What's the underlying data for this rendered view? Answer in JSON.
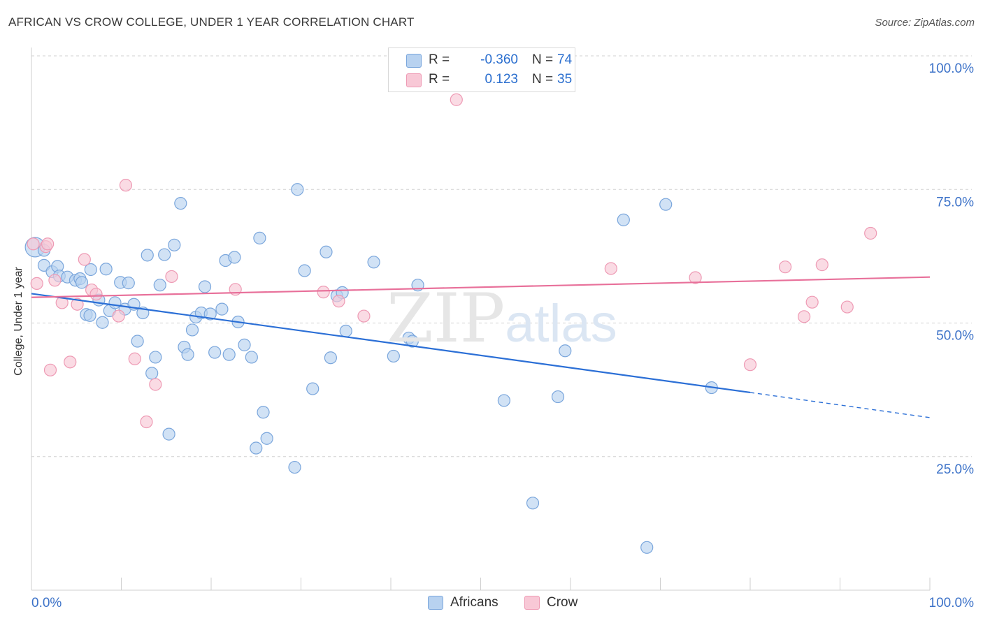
{
  "header": {
    "title": "AFRICAN VS CROW COLLEGE, UNDER 1 YEAR CORRELATION CHART",
    "source": "Source: ZipAtlas.com"
  },
  "legend": {
    "africans": {
      "r_label": "R =",
      "r_value": "-0.360",
      "n_label": "N =",
      "n_value": "74"
    },
    "crow": {
      "r_label": "R =",
      "r_value": "0.123",
      "n_label": "N =",
      "n_value": "35"
    }
  },
  "bottom_legend": {
    "africans": "Africans",
    "crow": "Crow"
  },
  "watermark": {
    "zip": "ZIP",
    "atlas": "atlas"
  },
  "colors": {
    "africans_fill": "#b8d2f0",
    "africans_stroke": "#7aa6dc",
    "africans_line": "#2b6fd6",
    "crow_fill": "#f8c8d6",
    "crow_stroke": "#ee9ab4",
    "crow_line": "#e8709a",
    "tick_text": "#3c72c8",
    "grid": "#d0d0d0"
  },
  "chart_data": {
    "type": "scatter",
    "title": "AFRICAN VS CROW COLLEGE, UNDER 1 YEAR CORRELATION CHART",
    "xlabel": "",
    "ylabel": "College, Under 1 year",
    "xlim": [
      0,
      100
    ],
    "ylim": [
      0,
      100
    ],
    "x_tick_labels": [
      "0.0%",
      "100.0%"
    ],
    "y_ticks": [
      25,
      50,
      75,
      100
    ],
    "y_tick_labels": [
      "25.0%",
      "50.0%",
      "75.0%",
      "100.0%"
    ],
    "series": [
      {
        "name": "Africans",
        "points": [
          [
            0.4,
            64.2
          ],
          [
            1.4,
            63.6
          ],
          [
            1.4,
            60.8
          ],
          [
            2.3,
            59.6
          ],
          [
            2.9,
            60.6
          ],
          [
            3.1,
            58.8
          ],
          [
            4.0,
            58.6
          ],
          [
            4.9,
            58.0
          ],
          [
            5.4,
            58.3
          ],
          [
            5.6,
            57.6
          ],
          [
            6.1,
            51.6
          ],
          [
            6.5,
            51.4
          ],
          [
            6.6,
            60.0
          ],
          [
            7.5,
            54.3
          ],
          [
            7.9,
            50.1
          ],
          [
            8.3,
            60.1
          ],
          [
            8.7,
            52.3
          ],
          [
            9.3,
            53.8
          ],
          [
            9.9,
            57.6
          ],
          [
            10.4,
            52.6
          ],
          [
            10.8,
            57.5
          ],
          [
            11.4,
            53.5
          ],
          [
            11.8,
            46.6
          ],
          [
            12.4,
            51.9
          ],
          [
            12.9,
            62.7
          ],
          [
            13.4,
            40.6
          ],
          [
            13.8,
            43.6
          ],
          [
            14.3,
            57.1
          ],
          [
            14.8,
            62.8
          ],
          [
            15.3,
            29.2
          ],
          [
            15.9,
            64.6
          ],
          [
            16.6,
            72.4
          ],
          [
            17.0,
            45.5
          ],
          [
            17.4,
            44.1
          ],
          [
            17.9,
            48.7
          ],
          [
            18.3,
            51.1
          ],
          [
            18.9,
            51.9
          ],
          [
            19.3,
            56.8
          ],
          [
            19.9,
            51.7
          ],
          [
            20.4,
            44.5
          ],
          [
            21.2,
            52.6
          ],
          [
            21.6,
            61.7
          ],
          [
            22.0,
            44.1
          ],
          [
            22.6,
            62.3
          ],
          [
            23.0,
            50.2
          ],
          [
            23.7,
            45.9
          ],
          [
            24.5,
            43.6
          ],
          [
            25.0,
            26.6
          ],
          [
            25.4,
            65.9
          ],
          [
            25.8,
            33.3
          ],
          [
            26.2,
            28.4
          ],
          [
            29.3,
            23.0
          ],
          [
            29.6,
            75.0
          ],
          [
            30.4,
            59.8
          ],
          [
            31.3,
            37.7
          ],
          [
            32.8,
            63.3
          ],
          [
            33.3,
            43.5
          ],
          [
            34.0,
            55.1
          ],
          [
            34.6,
            55.7
          ],
          [
            35.0,
            48.5
          ],
          [
            38.1,
            61.4
          ],
          [
            40.3,
            43.8
          ],
          [
            42.0,
            47.2
          ],
          [
            42.4,
            46.6
          ],
          [
            43.0,
            57.1
          ],
          [
            52.6,
            35.5
          ],
          [
            55.8,
            16.3
          ],
          [
            58.6,
            36.2
          ],
          [
            59.4,
            44.8
          ],
          [
            65.9,
            69.3
          ],
          [
            68.5,
            8.0
          ],
          [
            70.6,
            72.2
          ],
          [
            75.7,
            37.9
          ]
        ],
        "regression": {
          "x0": 0,
          "y0": 55.5,
          "x1": 80,
          "y1": 37.0,
          "dash_to_x": 100,
          "dash_to_y": 32.3
        }
      },
      {
        "name": "Crow",
        "points": [
          [
            0.2,
            64.8
          ],
          [
            0.6,
            57.4
          ],
          [
            1.6,
            64.3
          ],
          [
            1.8,
            64.8
          ],
          [
            2.1,
            41.2
          ],
          [
            2.6,
            58.0
          ],
          [
            3.4,
            53.8
          ],
          [
            4.3,
            42.7
          ],
          [
            5.1,
            53.5
          ],
          [
            5.9,
            61.9
          ],
          [
            6.7,
            56.2
          ],
          [
            7.2,
            55.4
          ],
          [
            9.7,
            51.3
          ],
          [
            10.5,
            75.8
          ],
          [
            11.5,
            43.3
          ],
          [
            12.8,
            31.5
          ],
          [
            13.8,
            38.5
          ],
          [
            15.6,
            58.7
          ],
          [
            22.7,
            56.3
          ],
          [
            32.5,
            55.8
          ],
          [
            34.2,
            54.1
          ],
          [
            37.0,
            51.3
          ],
          [
            47.3,
            91.8
          ],
          [
            64.5,
            60.2
          ],
          [
            73.9,
            58.5
          ],
          [
            80.0,
            42.2
          ],
          [
            83.9,
            60.5
          ],
          [
            86.0,
            51.2
          ],
          [
            86.9,
            53.9
          ],
          [
            88.0,
            60.9
          ],
          [
            90.8,
            53.0
          ],
          [
            93.4,
            66.8
          ]
        ],
        "regression": {
          "x0": 0,
          "y0": 54.8,
          "x1": 100,
          "y1": 58.6
        }
      }
    ]
  }
}
